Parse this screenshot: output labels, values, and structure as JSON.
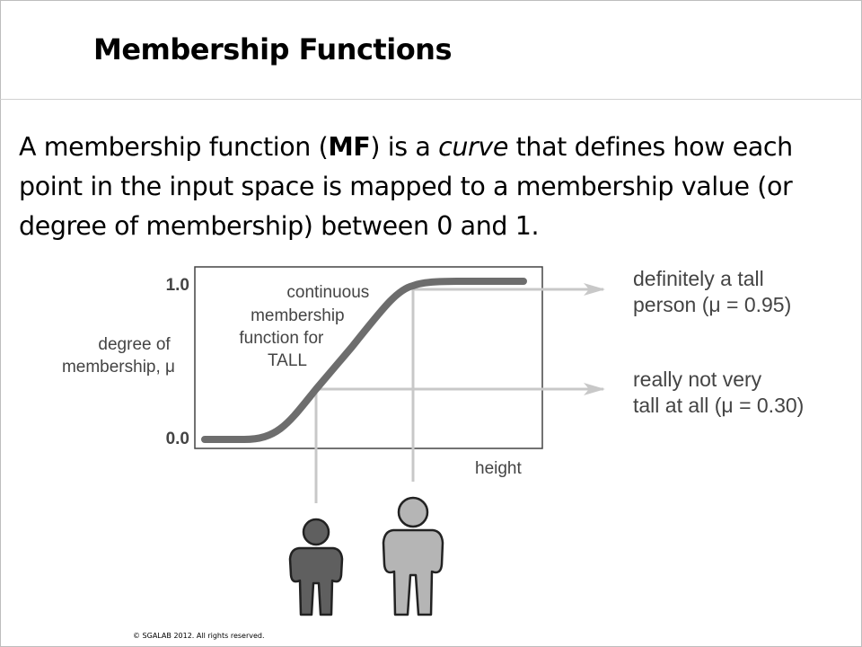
{
  "slide": {
    "title": "Membership Functions",
    "body": {
      "p1": "A membership function (",
      "term": "MF",
      "p2": ") is a ",
      "em": "curve",
      "p3": " that defines  how each point in the input space is mapped to a membership value (or degree of membership) between 0 and 1."
    },
    "copyright": "© SGALAB 2012. All rights reserved."
  },
  "diagram": {
    "y_axis_label": [
      "degree of",
      "membership, μ"
    ],
    "y_tick_top": "1.0",
    "y_tick_bottom": "0.0",
    "x_axis_label": "height",
    "curve_label": [
      "continuous",
      "membership",
      "function for",
      "TALL"
    ],
    "annotation_high": [
      "definitely a tall",
      "person (μ = 0.95)"
    ],
    "annotation_low": [
      "really not very",
      "tall at all (μ = 0.30)"
    ],
    "colors": {
      "curve": "#6d6d6d",
      "guide_lines": "#c8c8c8",
      "person_short": "#5f5f5f",
      "person_tall": "#b5b5b5"
    }
  },
  "chart_data": {
    "type": "line",
    "ylim": [
      0,
      1
    ],
    "annotated_points": [
      {
        "label": "really not very tall at all",
        "mu": 0.3
      },
      {
        "label": "definitely a tall person",
        "mu": 0.95
      }
    ]
  }
}
